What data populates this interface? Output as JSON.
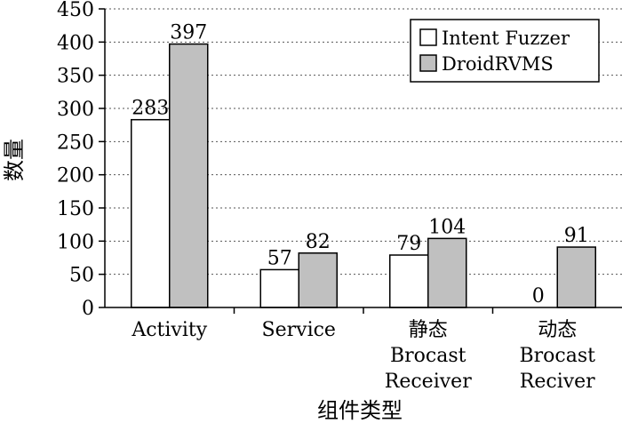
{
  "chart_data": {
    "type": "bar",
    "categories": [
      [
        "Activity"
      ],
      [
        "Service"
      ],
      [
        "静态",
        "Brocast",
        "Receiver"
      ],
      [
        "动态",
        "Brocast",
        "Reciver"
      ]
    ],
    "series": [
      {
        "name": "Intent Fuzzer",
        "values": [
          283,
          57,
          79,
          0
        ],
        "color": "#ffffff"
      },
      {
        "name": "DroidRVMS",
        "values": [
          397,
          82,
          104,
          91
        ],
        "color": "#c0c0c0"
      }
    ],
    "xlabel": "组件类型",
    "ylabel": "数量",
    "ylim": [
      0,
      450
    ],
    "yticks": [
      0,
      50,
      100,
      150,
      200,
      250,
      300,
      350,
      400,
      450
    ],
    "grid": true,
    "legend_position": "top-right"
  }
}
